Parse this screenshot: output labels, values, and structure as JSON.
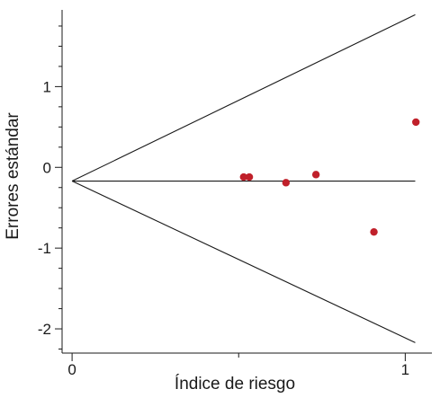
{
  "chart_data": {
    "type": "scatter",
    "title": "",
    "xlabel": "Índice de riesgo",
    "ylabel": "Errores estándar",
    "xlim": [
      -0.03,
      1.08
    ],
    "ylim": [
      -2.3,
      1.95
    ],
    "x_ticks": [
      {
        "value": 0,
        "label": "0"
      },
      {
        "value": 1,
        "label": "1"
      }
    ],
    "x_minor_ticks": [
      0.5
    ],
    "y_ticks": [
      {
        "value": 1,
        "label": "1"
      },
      {
        "value": 0,
        "label": "0"
      },
      {
        "value": -1,
        "label": "-1"
      },
      {
        "value": -2,
        "label": "-2"
      }
    ],
    "y_minor_step": 0.25,
    "grid": false,
    "legend": "none",
    "points_color": "#c0202a",
    "points": [
      {
        "x": 0.515,
        "y": -0.12
      },
      {
        "x": 0.532,
        "y": -0.12
      },
      {
        "x": 0.642,
        "y": -0.19
      },
      {
        "x": 0.732,
        "y": -0.09
      },
      {
        "x": 0.906,
        "y": -0.8
      },
      {
        "x": 1.032,
        "y": 0.56
      }
    ],
    "funnel": {
      "apex": {
        "x": 0.0,
        "y": -0.17
      },
      "upper_end": {
        "x": 1.03,
        "y": 1.89
      },
      "lower_end": {
        "x": 1.03,
        "y": -2.17
      },
      "center_end": {
        "x": 1.03,
        "y": -0.17
      }
    }
  }
}
